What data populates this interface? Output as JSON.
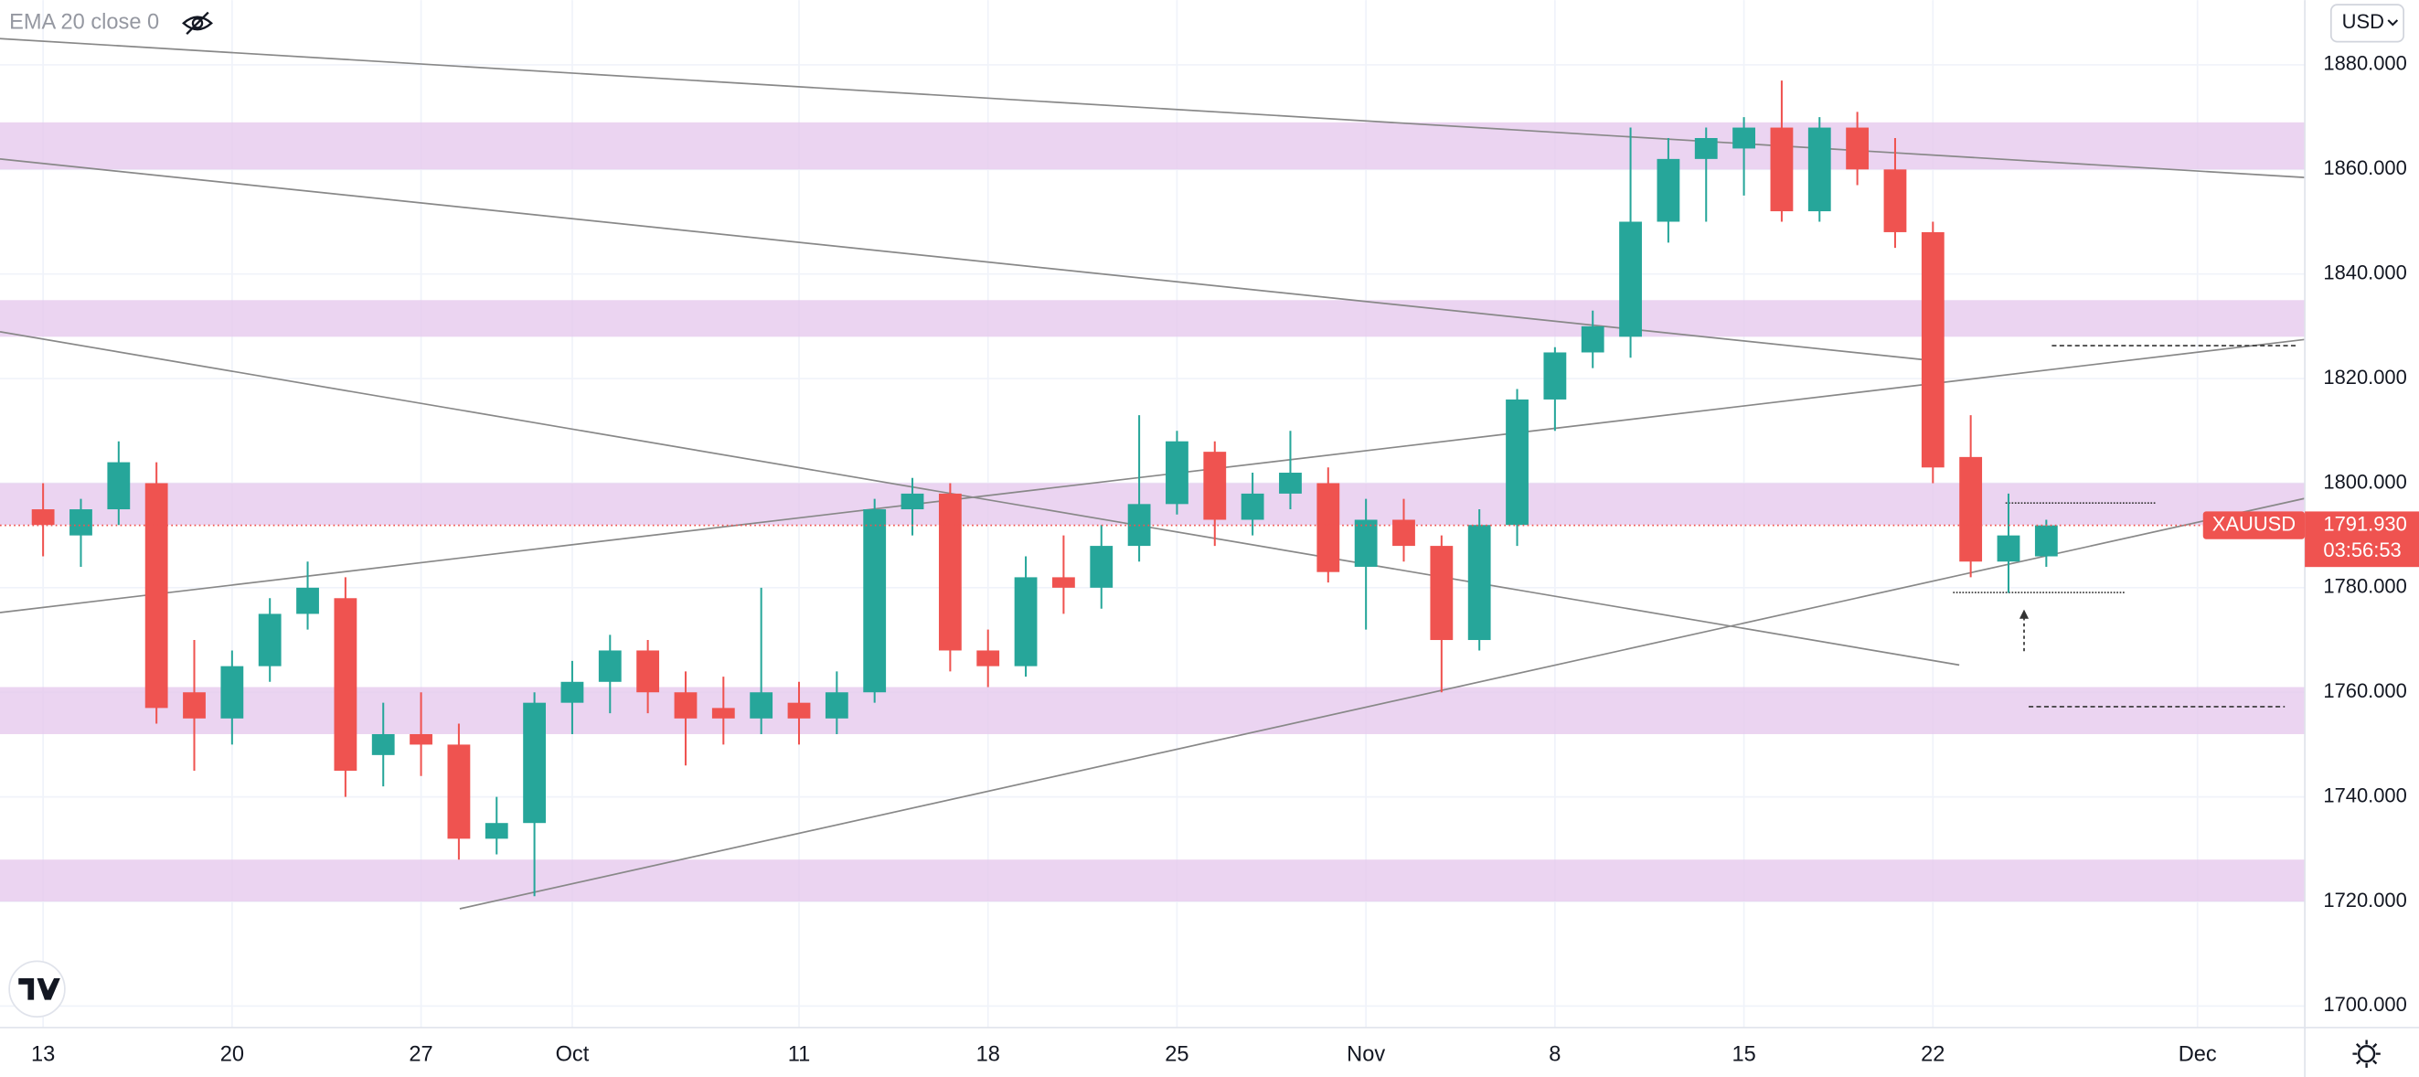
{
  "chart_data": {
    "type": "candlestick",
    "indicator": "EMA 20 close 0",
    "currency": "USD",
    "symbol": "XAUUSD",
    "last_price": {
      "value": 1791.93,
      "label": "1791.930"
    },
    "countdown": "03:56:53",
    "up_color": "#26a69a",
    "down_color": "#ef5350",
    "zone_color": "#e6c9ee",
    "grid": true,
    "x": [
      0,
      1,
      2,
      3,
      4,
      5,
      6,
      7,
      8,
      9,
      10,
      11,
      12,
      13,
      14,
      15,
      16,
      17,
      18,
      19,
      20,
      21,
      22,
      23,
      24,
      25,
      26,
      27,
      28,
      29,
      30,
      31,
      32,
      33,
      34,
      35,
      36,
      37,
      38,
      39,
      40,
      41,
      42,
      43,
      44,
      45,
      46,
      47,
      48,
      49,
      50,
      51,
      52,
      53
    ],
    "open": [
      1795,
      1790,
      1795,
      1800,
      1760,
      1755,
      1765,
      1775,
      1778,
      1748,
      1752,
      1750,
      1732,
      1735,
      1758,
      1762,
      1768,
      1760,
      1757,
      1755,
      1758,
      1755,
      1760,
      1795,
      1798,
      1768,
      1765,
      1782,
      1780,
      1788,
      1796,
      1806,
      1793,
      1798,
      1800,
      1784,
      1793,
      1788,
      1770,
      1792,
      1816,
      1825,
      1828,
      1850,
      1862,
      1864,
      1868,
      1852,
      1868,
      1860,
      1848,
      1805,
      1785,
      1786
    ],
    "high": [
      1800,
      1797,
      1808,
      1804,
      1770,
      1768,
      1778,
      1785,
      1782,
      1758,
      1760,
      1754,
      1740,
      1760,
      1766,
      1771,
      1770,
      1764,
      1763,
      1780,
      1762,
      1764,
      1797,
      1801,
      1800,
      1772,
      1786,
      1790,
      1792,
      1813,
      1810,
      1808,
      1802,
      1810,
      1803,
      1797,
      1797,
      1790,
      1795,
      1818,
      1826,
      1833,
      1868,
      1866,
      1868,
      1870,
      1877,
      1870,
      1871,
      1866,
      1850,
      1813,
      1798,
      1793
    ],
    "low": [
      1786,
      1784,
      1792,
      1754,
      1745,
      1750,
      1762,
      1772,
      1740,
      1742,
      1744,
      1728,
      1729,
      1721,
      1752,
      1756,
      1756,
      1746,
      1750,
      1752,
      1750,
      1752,
      1758,
      1790,
      1764,
      1761,
      1763,
      1775,
      1776,
      1785,
      1794,
      1788,
      1790,
      1795,
      1781,
      1772,
      1785,
      1760,
      1768,
      1788,
      1810,
      1822,
      1824,
      1846,
      1850,
      1855,
      1850,
      1850,
      1857,
      1845,
      1800,
      1782,
      1779,
      1784
    ],
    "close": [
      1792,
      1795,
      1804,
      1757,
      1755,
      1765,
      1775,
      1780,
      1745,
      1752,
      1750,
      1732,
      1735,
      1758,
      1762,
      1768,
      1760,
      1755,
      1755,
      1760,
      1755,
      1760,
      1795,
      1798,
      1768,
      1765,
      1782,
      1780,
      1788,
      1796,
      1808,
      1793,
      1798,
      1802,
      1783,
      1793,
      1788,
      1770,
      1792,
      1816,
      1825,
      1830,
      1850,
      1862,
      1866,
      1868,
      1852,
      1868,
      1860,
      1848,
      1803,
      1785,
      1790,
      1791.93
    ],
    "zones": [
      [
        1860,
        1869
      ],
      [
        1828,
        1835
      ],
      [
        1792,
        1800
      ],
      [
        1752,
        1761
      ],
      [
        1720,
        1728
      ]
    ],
    "xlim": [
      -1.14,
      59.84
    ],
    "xticks": [
      {
        "value": 0,
        "label": "13"
      },
      {
        "value": 5,
        "label": "20"
      },
      {
        "value": 10,
        "label": "27"
      },
      {
        "value": 14,
        "label": "Oct"
      },
      {
        "value": 20,
        "label": "11"
      },
      {
        "value": 25,
        "label": "18"
      },
      {
        "value": 30,
        "label": "25"
      },
      {
        "value": 35,
        "label": "Nov"
      },
      {
        "value": 40,
        "label": "8"
      },
      {
        "value": 45,
        "label": "15"
      },
      {
        "value": 50,
        "label": "22"
      },
      {
        "value": 57,
        "label": "Dec"
      }
    ],
    "ylim": [
      1695.88,
      1892.39
    ],
    "yticks": [
      {
        "value": 1700,
        "label": "1700.000"
      },
      {
        "value": 1720,
        "label": "1720.000"
      },
      {
        "value": 1740,
        "label": "1740.000"
      },
      {
        "value": 1760,
        "label": "1760.000"
      },
      {
        "value": 1780,
        "label": "1780.000"
      },
      {
        "value": 1800,
        "label": "1800.000"
      },
      {
        "value": 1820,
        "label": "1820.000"
      },
      {
        "value": 1840,
        "label": "1840.000"
      },
      {
        "value": 1860,
        "label": "1860.000"
      },
      {
        "value": 1880,
        "label": "1880.000"
      }
    ]
  }
}
